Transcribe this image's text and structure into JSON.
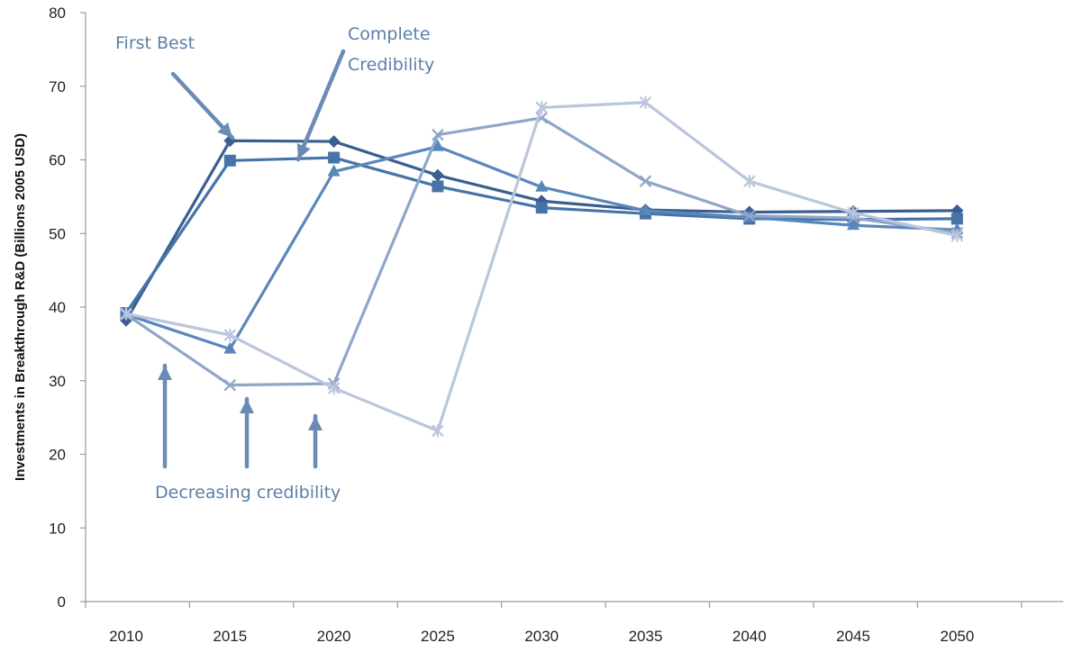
{
  "chart_data": {
    "type": "line",
    "title": "",
    "xlabel": "",
    "ylabel": "Investments in Breakthrough R&D (Billions 2005  USD)",
    "categories": [
      "2010",
      "2015",
      "2020",
      "2025",
      "2030",
      "2035",
      "2040",
      "2045",
      "2050"
    ],
    "ylim": [
      0,
      80
    ],
    "yticks": [
      0,
      10,
      20,
      30,
      40,
      50,
      60,
      70,
      80
    ],
    "grid": false,
    "legend": "none",
    "series": [
      {
        "marker": "diamond",
        "color": "#3a5f8f",
        "values": [
          38.2,
          62.6,
          62.5,
          57.9,
          54.4,
          53.2,
          52.9,
          53.0,
          53.1
        ]
      },
      {
        "marker": "square",
        "color": "#4674a8",
        "values": [
          39.2,
          59.9,
          60.3,
          56.4,
          53.5,
          52.7,
          52.0,
          51.9,
          52.0
        ]
      },
      {
        "marker": "triangle",
        "color": "#5a87bb",
        "values": [
          39.0,
          34.3,
          58.4,
          61.8,
          56.3,
          53.1,
          52.2,
          51.1,
          50.5
        ]
      },
      {
        "marker": "x",
        "color": "#8ea6c8",
        "values": [
          39.0,
          29.4,
          29.6,
          63.4,
          65.7,
          57.1,
          52.4,
          52.1,
          50.1
        ]
      },
      {
        "marker": "cross",
        "color": "#b9c6dc",
        "values": [
          39.1,
          36.2,
          29.0,
          23.2,
          67.1,
          67.8,
          57.1,
          52.8,
          49.7
        ]
      }
    ],
    "annotations": [
      {
        "text": "First Best",
        "color": "#5a7fa8"
      },
      {
        "text": "Complete",
        "color": "#5a7fa8"
      },
      {
        "text": "Credibility",
        "color": "#5a7fa8"
      },
      {
        "text": "Decreasing credibility",
        "color": "#5a7fa8"
      }
    ]
  }
}
